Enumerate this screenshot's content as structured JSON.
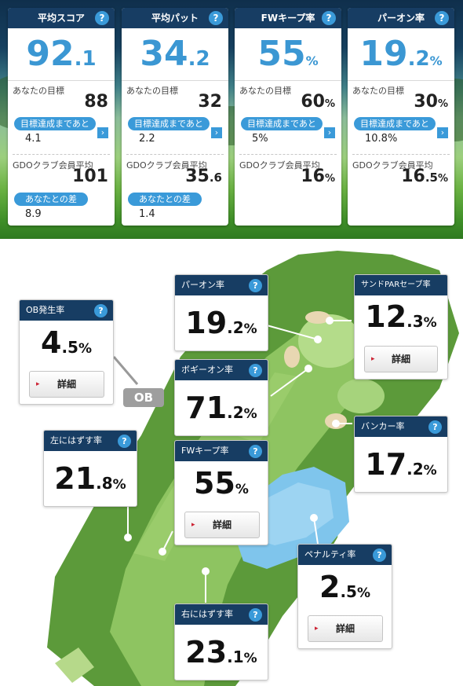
{
  "top_stats": [
    {
      "title": "平均スコア",
      "int": "92",
      "dec": ".1",
      "unit": "",
      "goal_label": "あなたの目標",
      "goal_int": "88",
      "goal_dec": "",
      "goal_unit": "",
      "remain_label": "目標達成まであと",
      "remain_value": "4.1",
      "club_label": "GDOクラブ会員平均",
      "club_int": "101",
      "club_dec": "",
      "club_unit": "",
      "diff_label": "あなたとの差",
      "diff_value": "8.9"
    },
    {
      "title": "平均パット",
      "int": "34",
      "dec": ".2",
      "unit": "",
      "goal_label": "あなたの目標",
      "goal_int": "32",
      "goal_dec": "",
      "goal_unit": "",
      "remain_label": "目標達成まであと",
      "remain_value": "2.2",
      "club_label": "GDOクラブ会員平均",
      "club_int": "35",
      "club_dec": ".6",
      "club_unit": "",
      "diff_label": "あなたとの差",
      "diff_value": "1.4"
    },
    {
      "title": "FWキープ率",
      "int": "55",
      "dec": "",
      "unit": "%",
      "goal_label": "あなたの目標",
      "goal_int": "60",
      "goal_dec": "",
      "goal_unit": "%",
      "remain_label": "目標達成まであと",
      "remain_value": "5%",
      "club_label": "GDOクラブ会員平均",
      "club_int": "16",
      "club_dec": "",
      "club_unit": "%"
    },
    {
      "title": "パーオン率",
      "int": "19",
      "dec": ".2",
      "unit": "%",
      "goal_label": "あなたの目標",
      "goal_int": "30",
      "goal_dec": "",
      "goal_unit": "%",
      "remain_label": "目標達成まであと",
      "remain_value": "10.8%",
      "club_label": "GDOクラブ会員平均",
      "club_int": "16",
      "club_dec": ".5",
      "club_unit": "%"
    }
  ],
  "help_glyph": "?",
  "arrow_glyph": "›",
  "map_stats": {
    "ob": {
      "title": "OB発生率",
      "int": "4",
      "dec": ".5",
      "unit": "%",
      "button": "詳細"
    },
    "paron": {
      "title": "パーオン率",
      "int": "19",
      "dec": ".2",
      "unit": "%"
    },
    "sandpar": {
      "title": "サンドPARセーブ率",
      "int": "12",
      "dec": ".3",
      "unit": "%",
      "button": "詳細"
    },
    "bogey": {
      "title": "ボギーオン率",
      "int": "71",
      "dec": ".2",
      "unit": "%"
    },
    "bunker": {
      "title": "バンカー率",
      "int": "17",
      "dec": ".2",
      "unit": "%"
    },
    "left": {
      "title": "左にはずす率",
      "int": "21",
      "dec": ".8",
      "unit": "%"
    },
    "fw": {
      "title": "FWキープ率",
      "int": "55",
      "dec": "",
      "unit": "%",
      "button": "詳細"
    },
    "penalty": {
      "title": "ペナルティ率",
      "int": "2",
      "dec": ".5",
      "unit": "%",
      "button": "詳細"
    },
    "right": {
      "title": "右にはずす率",
      "int": "23",
      "dec": ".1",
      "unit": "%"
    }
  },
  "ob_tag": "OB",
  "button_marker": "▸",
  "colors": {
    "header": "#173d63",
    "accent": "#3a9ad9",
    "big_value": "#3b97d3"
  }
}
